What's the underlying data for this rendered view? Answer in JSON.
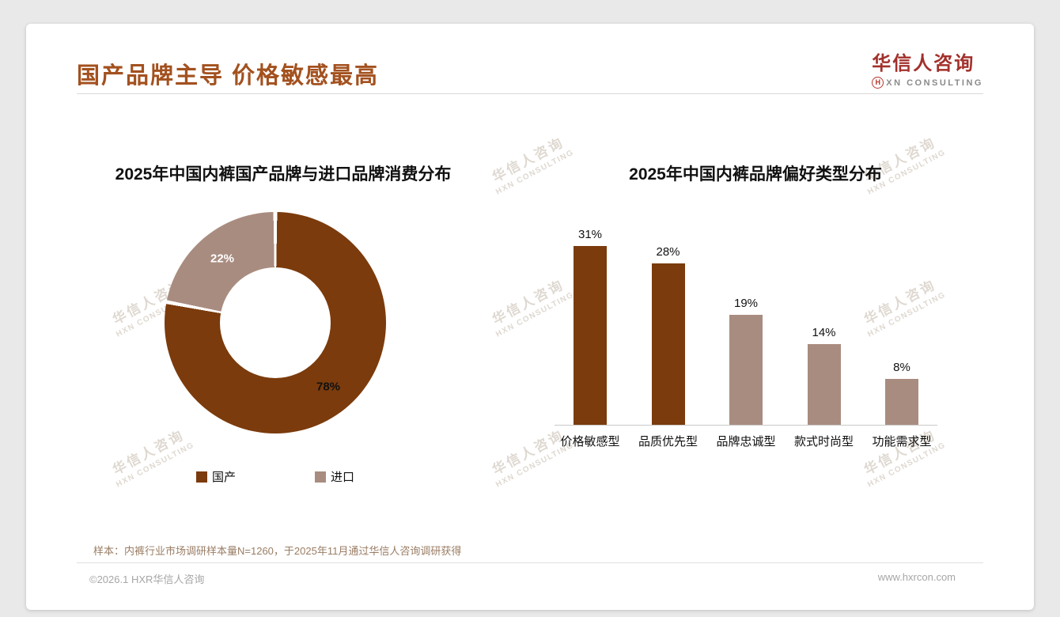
{
  "page": {
    "title": "国产品牌主导 价格敏感最高",
    "logo": {
      "cn": "华信人咨询",
      "mark": "H",
      "en": "XN CONSULTING"
    },
    "watermark": {
      "line1": "华信人咨询",
      "line2": "HXN CONSULTING"
    },
    "footer": {
      "sample_note": "样本：内裤行业市场调研样本量N=1260，于2025年11月通过华信人咨询调研获得",
      "copyright": "©2026.1 HXR华信人咨询",
      "website": "www.hxrcon.com"
    },
    "colors": {
      "dark_brown": "#7B3B0C",
      "taupe": "#A98C80",
      "title_brown": "#A3511F",
      "logo_red": "#A2302B"
    }
  },
  "chart_data": [
    {
      "type": "pie",
      "donut": true,
      "title": "2025年中国内裤国产品牌与进口品牌消费分布",
      "labels": [
        "国产",
        "进口"
      ],
      "values": [
        78,
        22
      ],
      "slice_labels": [
        "78%",
        "22%"
      ],
      "colors": [
        "#7B3B0C",
        "#A98C80"
      ],
      "legend_position": "bottom"
    },
    {
      "type": "bar",
      "title": "2025年中国内裤品牌偏好类型分布",
      "categories": [
        "价格敏感型",
        "品质优先型",
        "品牌忠诚型",
        "款式时尚型",
        "功能需求型"
      ],
      "values": [
        31,
        28,
        19,
        14,
        8
      ],
      "value_labels": [
        "31%",
        "28%",
        "19%",
        "14%",
        "8%"
      ],
      "colors": [
        "#7B3B0C",
        "#7B3B0C",
        "#A98C80",
        "#A98C80",
        "#A98C80"
      ],
      "ylim": [
        0,
        35
      ],
      "grid": false
    }
  ]
}
